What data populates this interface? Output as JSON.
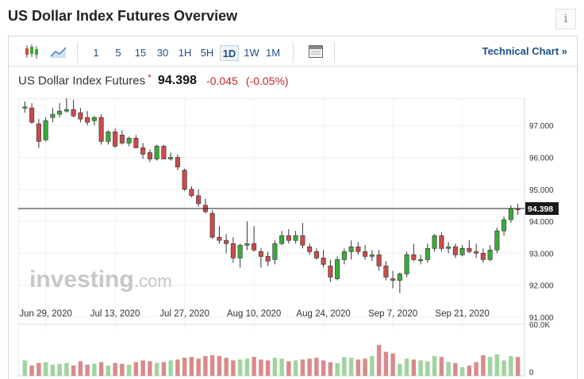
{
  "header": {
    "title": "US Dollar Index Futures Overview",
    "info_label": "i"
  },
  "toolbar": {
    "timeframes": [
      "1",
      "5",
      "15",
      "30",
      "1H",
      "5H",
      "1D",
      "1W",
      "1M"
    ],
    "active_timeframe": "1D",
    "technical_chart_label": "Technical Chart »"
  },
  "quote": {
    "name": "US Dollar Index Futures",
    "star": "*",
    "last": "94.398",
    "change": "-0.045",
    "change_pct": "(-0.05%)"
  },
  "watermark": {
    "brand": "investing",
    "suffix": ".com"
  },
  "colors": {
    "up": "#3aaa3a",
    "down": "#c94b4b",
    "up_volume": "#9fd49f",
    "down_volume": "#d98a8a",
    "link": "#1f4e8c"
  },
  "chart_data": {
    "type": "candlestick",
    "y_ticks": [
      "97.000",
      "96.000",
      "95.000",
      "94.000",
      "93.000",
      "92.000",
      "91.000"
    ],
    "x_ticks": [
      "Jun 29, 2020",
      "Jul 13, 2020",
      "Jul 27, 2020",
      "Aug 10, 2020",
      "Aug 24, 2020",
      "Sep 7, 2020",
      "Sep 21, 2020"
    ],
    "ylim": [
      90.6,
      97.85
    ],
    "current_price": "94.398",
    "volume_ticks": [
      "60.0K",
      "0"
    ],
    "volume_max": 60000,
    "candles": [
      [
        97.55,
        97.75,
        97.4,
        97.58
      ],
      [
        97.55,
        97.7,
        97.05,
        97.1
      ],
      [
        97.05,
        97.2,
        96.3,
        96.5
      ],
      [
        96.55,
        97.25,
        96.5,
        97.15
      ],
      [
        97.25,
        97.55,
        97.1,
        97.35
      ],
      [
        97.35,
        97.7,
        97.25,
        97.45
      ],
      [
        97.45,
        97.85,
        97.4,
        97.5
      ],
      [
        97.5,
        97.8,
        97.25,
        97.3
      ],
      [
        97.4,
        97.55,
        97.1,
        97.2
      ],
      [
        97.25,
        97.45,
        97.0,
        97.1
      ],
      [
        97.15,
        97.3,
        97.0,
        97.25
      ],
      [
        97.25,
        97.35,
        96.4,
        96.5
      ],
      [
        96.5,
        96.85,
        96.4,
        96.8
      ],
      [
        96.8,
        96.9,
        96.3,
        96.35
      ],
      [
        96.7,
        96.85,
        96.4,
        96.45
      ],
      [
        96.45,
        96.65,
        96.35,
        96.6
      ],
      [
        96.6,
        96.7,
        96.3,
        96.3
      ],
      [
        96.3,
        96.45,
        95.95,
        96.1
      ],
      [
        96.15,
        96.25,
        95.85,
        95.95
      ],
      [
        95.95,
        96.4,
        95.9,
        96.35
      ],
      [
        96.35,
        96.4,
        95.95,
        95.95
      ],
      [
        95.95,
        96.15,
        95.9,
        96.0
      ],
      [
        96.0,
        96.1,
        95.6,
        95.7
      ],
      [
        95.6,
        95.65,
        94.95,
        95.0
      ],
      [
        95.0,
        95.1,
        94.75,
        94.8
      ],
      [
        94.8,
        95.0,
        94.45,
        94.55
      ],
      [
        94.5,
        94.7,
        94.25,
        94.3
      ],
      [
        94.25,
        94.35,
        93.45,
        93.5
      ],
      [
        93.5,
        93.85,
        93.3,
        93.4
      ],
      [
        93.4,
        93.6,
        93.0,
        93.3
      ],
      [
        93.3,
        93.5,
        92.7,
        92.85
      ],
      [
        92.85,
        93.3,
        92.55,
        93.25
      ],
      [
        93.25,
        94.0,
        93.1,
        93.3
      ],
      [
        93.3,
        93.85,
        93.05,
        93.1
      ],
      [
        93.05,
        93.15,
        92.55,
        92.9
      ],
      [
        92.9,
        93.05,
        92.6,
        92.75
      ],
      [
        92.8,
        93.4,
        92.65,
        93.3
      ],
      [
        93.3,
        93.7,
        93.25,
        93.55
      ],
      [
        93.55,
        93.75,
        93.3,
        93.4
      ],
      [
        93.4,
        93.7,
        93.3,
        93.55
      ],
      [
        93.55,
        93.95,
        93.15,
        93.25
      ],
      [
        93.2,
        93.3,
        92.95,
        93.05
      ],
      [
        93.05,
        93.15,
        92.8,
        92.85
      ],
      [
        92.85,
        93.1,
        92.55,
        92.65
      ],
      [
        92.6,
        92.8,
        92.1,
        92.25
      ],
      [
        92.2,
        92.9,
        92.15,
        92.8
      ],
      [
        92.8,
        93.15,
        92.65,
        93.05
      ],
      [
        93.05,
        93.4,
        92.8,
        93.2
      ],
      [
        93.2,
        93.35,
        92.95,
        93.05
      ],
      [
        93.05,
        93.25,
        92.8,
        92.9
      ],
      [
        92.9,
        93.1,
        92.75,
        92.95
      ],
      [
        92.95,
        93.1,
        92.45,
        92.6
      ],
      [
        92.6,
        92.75,
        92.15,
        92.25
      ],
      [
        92.2,
        92.45,
        91.9,
        92.15
      ],
      [
        92.15,
        92.4,
        91.75,
        92.35
      ],
      [
        92.35,
        93.05,
        92.25,
        92.95
      ],
      [
        92.95,
        93.3,
        92.75,
        92.8
      ],
      [
        92.8,
        92.95,
        92.65,
        92.8
      ],
      [
        92.8,
        93.3,
        92.7,
        93.15
      ],
      [
        93.15,
        93.6,
        93.05,
        93.55
      ],
      [
        93.55,
        93.65,
        93.05,
        93.15
      ],
      [
        93.15,
        93.35,
        93.0,
        93.2
      ],
      [
        93.2,
        93.3,
        92.85,
        92.95
      ],
      [
        92.95,
        93.25,
        92.9,
        93.15
      ],
      [
        93.15,
        93.4,
        93.0,
        93.05
      ],
      [
        93.05,
        93.3,
        92.85,
        93.0
      ],
      [
        93.0,
        93.15,
        92.7,
        92.8
      ],
      [
        92.8,
        93.25,
        92.75,
        93.1
      ],
      [
        93.1,
        93.8,
        93.0,
        93.7
      ],
      [
        93.7,
        94.15,
        93.55,
        94.05
      ],
      [
        94.05,
        94.5,
        93.95,
        94.4
      ],
      [
        94.4,
        94.55,
        94.2,
        94.398
      ]
    ],
    "volumes": [
      18000,
      12000,
      15000,
      16000,
      13000,
      14000,
      15000,
      12000,
      17000,
      13000,
      14000,
      16000,
      12000,
      15000,
      14000,
      13000,
      16000,
      18000,
      17000,
      15000,
      16000,
      18000,
      19000,
      21000,
      22000,
      20000,
      23000,
      24000,
      23000,
      21000,
      18000,
      19000,
      20000,
      22000,
      19000,
      18000,
      21000,
      20000,
      17000,
      18000,
      19000,
      20000,
      21000,
      18000,
      16000,
      15000,
      22000,
      21000,
      19000,
      20000,
      23000,
      36000,
      28000,
      26000,
      14000,
      20000,
      19000,
      18000,
      17000,
      23000,
      22000,
      16000,
      15000,
      10000,
      12000,
      16000,
      24000,
      22000,
      25000,
      18000,
      23000,
      22000
    ]
  }
}
